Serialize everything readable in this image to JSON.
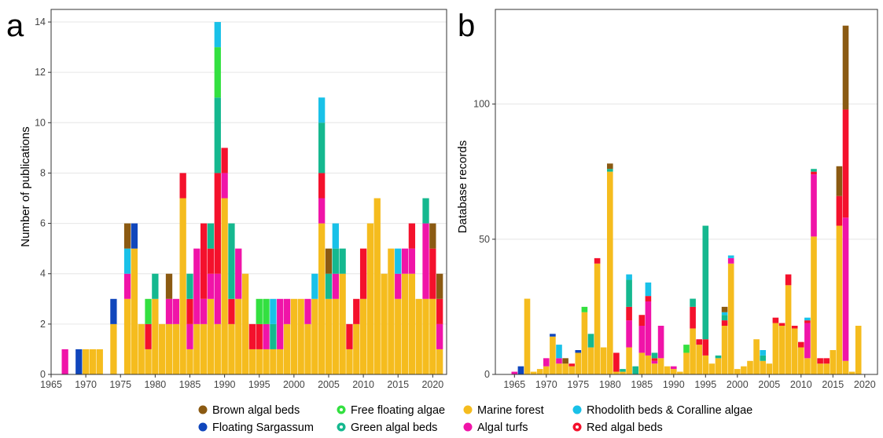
{
  "chart_data": [
    {
      "type": "bar",
      "stacked": true,
      "panel_label": "a",
      "ylabel": "Number of publications",
      "xlim": [
        1965,
        2022
      ],
      "ylim": [
        0,
        14.5
      ],
      "x_ticks": [
        1965,
        1970,
        1975,
        1980,
        1985,
        1990,
        1995,
        2000,
        2005,
        2010,
        2015,
        2020
      ],
      "y_ticks": [
        0,
        2,
        4,
        6,
        8,
        10,
        12,
        14
      ],
      "grid": true,
      "stack_order": [
        "Marine forest",
        "Algal turfs",
        "Red algal beds",
        "Green algal beds",
        "Free floating algae",
        "Rhodolith beds & Coralline algae",
        "Floating Sargassum",
        "Brown algal beds"
      ],
      "bars": [
        {
          "x": 1967,
          "values": {
            "Algal turfs": 1
          }
        },
        {
          "x": 1969,
          "values": {
            "Floating Sargassum": 1
          }
        },
        {
          "x": 1970,
          "values": {
            "Marine forest": 1
          }
        },
        {
          "x": 1971,
          "values": {
            "Marine forest": 1
          }
        },
        {
          "x": 1972,
          "values": {
            "Marine forest": 1
          }
        },
        {
          "x": 1974,
          "values": {
            "Marine forest": 2,
            "Floating Sargassum": 1
          }
        },
        {
          "x": 1976,
          "values": {
            "Marine forest": 3,
            "Algal turfs": 1,
            "Rhodolith beds & Coralline algae": 1,
            "Brown algal beds": 1
          }
        },
        {
          "x": 1977,
          "values": {
            "Marine forest": 5,
            "Floating Sargassum": 1
          }
        },
        {
          "x": 1978,
          "values": {
            "Marine forest": 2
          }
        },
        {
          "x": 1979,
          "values": {
            "Marine forest": 1,
            "Red algal beds": 1,
            "Free floating algae": 1
          }
        },
        {
          "x": 1980,
          "values": {
            "Marine forest": 3,
            "Green algal beds": 1
          }
        },
        {
          "x": 1981,
          "values": {
            "Marine forest": 2
          }
        },
        {
          "x": 1982,
          "values": {
            "Marine forest": 2,
            "Algal turfs": 1,
            "Brown algal beds": 1
          }
        },
        {
          "x": 1983,
          "values": {
            "Marine forest": 2,
            "Algal turfs": 1
          }
        },
        {
          "x": 1984,
          "values": {
            "Marine forest": 7,
            "Red algal beds": 1
          }
        },
        {
          "x": 1985,
          "values": {
            "Marine forest": 1,
            "Algal turfs": 1,
            "Red algal beds": 1,
            "Green algal beds": 1
          }
        },
        {
          "x": 1986,
          "values": {
            "Marine forest": 2,
            "Algal turfs": 3
          }
        },
        {
          "x": 1987,
          "values": {
            "Marine forest": 2,
            "Algal turfs": 1,
            "Red algal beds": 3
          }
        },
        {
          "x": 1988,
          "values": {
            "Marine forest": 3,
            "Algal turfs": 1,
            "Red algal beds": 1,
            "Green algal beds": 1
          }
        },
        {
          "x": 1989,
          "values": {
            "Marine forest": 2,
            "Algal turfs": 2,
            "Red algal beds": 4,
            "Green algal beds": 3,
            "Free floating algae": 2,
            "Rhodolith beds & Coralline algae": 1
          }
        },
        {
          "x": 1990,
          "values": {
            "Marine forest": 7,
            "Algal turfs": 1,
            "Red algal beds": 1
          }
        },
        {
          "x": 1991,
          "values": {
            "Marine forest": 2,
            "Red algal beds": 1,
            "Green algal beds": 3
          }
        },
        {
          "x": 1992,
          "values": {
            "Marine forest": 3,
            "Algal turfs": 2
          }
        },
        {
          "x": 1993,
          "values": {
            "Marine forest": 4
          }
        },
        {
          "x": 1994,
          "values": {
            "Marine forest": 1,
            "Red algal beds": 1
          }
        },
        {
          "x": 1995,
          "values": {
            "Marine forest": 1,
            "Red algal beds": 1,
            "Free floating algae": 1
          }
        },
        {
          "x": 1996,
          "values": {
            "Marine forest": 1,
            "Algal turfs": 1,
            "Free floating algae": 1
          }
        },
        {
          "x": 1997,
          "values": {
            "Marine forest": 1,
            "Green algal beds": 1,
            "Rhodolith beds & Coralline algae": 1
          }
        },
        {
          "x": 1998,
          "values": {
            "Marine forest": 1,
            "Algal turfs": 2
          }
        },
        {
          "x": 1999,
          "values": {
            "Marine forest": 2,
            "Algal turfs": 1
          }
        },
        {
          "x": 2000,
          "values": {
            "Marine forest": 3
          }
        },
        {
          "x": 2001,
          "values": {
            "Marine forest": 3
          }
        },
        {
          "x": 2002,
          "values": {
            "Marine forest": 2,
            "Algal turfs": 1
          }
        },
        {
          "x": 2003,
          "values": {
            "Marine forest": 3,
            "Rhodolith beds & Coralline algae": 1
          }
        },
        {
          "x": 2004,
          "values": {
            "Marine forest": 6,
            "Red algal beds": 1,
            "Algal turfs": 1,
            "Green algal beds": 2,
            "Rhodolith beds & Coralline algae": 1
          }
        },
        {
          "x": 2005,
          "values": {
            "Marine forest": 3,
            "Green algal beds": 1,
            "Brown algal beds": 1
          }
        },
        {
          "x": 2006,
          "values": {
            "Marine forest": 3,
            "Algal turfs": 1,
            "Green algal beds": 1,
            "Rhodolith beds & Coralline algae": 1
          }
        },
        {
          "x": 2007,
          "values": {
            "Marine forest": 4,
            "Green algal beds": 1
          }
        },
        {
          "x": 2008,
          "values": {
            "Marine forest": 1,
            "Red algal beds": 1
          }
        },
        {
          "x": 2009,
          "values": {
            "Marine forest": 2,
            "Red algal beds": 1
          }
        },
        {
          "x": 2010,
          "values": {
            "Marine forest": 3,
            "Red algal beds": 2
          }
        },
        {
          "x": 2011,
          "values": {
            "Marine forest": 6
          }
        },
        {
          "x": 2012,
          "values": {
            "Marine forest": 7
          }
        },
        {
          "x": 2013,
          "values": {
            "Marine forest": 4
          }
        },
        {
          "x": 2014,
          "values": {
            "Marine forest": 5
          }
        },
        {
          "x": 2015,
          "values": {
            "Marine forest": 3,
            "Algal turfs": 1,
            "Rhodolith beds & Coralline algae": 1
          }
        },
        {
          "x": 2016,
          "values": {
            "Marine forest": 4,
            "Algal turfs": 1
          }
        },
        {
          "x": 2017,
          "values": {
            "Marine forest": 4,
            "Algal turfs": 1,
            "Red algal beds": 1
          }
        },
        {
          "x": 2018,
          "values": {
            "Marine forest": 3
          }
        },
        {
          "x": 2019,
          "values": {
            "Marine forest": 3,
            "Algal turfs": 3,
            "Green algal beds": 1
          }
        },
        {
          "x": 2020,
          "values": {
            "Marine forest": 3,
            "Red algal beds": 2,
            "Brown algal beds": 1
          }
        },
        {
          "x": 2021,
          "values": {
            "Marine forest": 1,
            "Algal turfs": 1,
            "Red algal beds": 1,
            "Brown algal beds": 1
          }
        }
      ]
    },
    {
      "type": "bar",
      "stacked": true,
      "panel_label": "b",
      "ylabel": "Database records",
      "xlim": [
        1962,
        2022
      ],
      "ylim": [
        0,
        135
      ],
      "x_ticks": [
        1965,
        1970,
        1975,
        1980,
        1985,
        1990,
        1995,
        2000,
        2005,
        2010,
        2015,
        2020
      ],
      "y_ticks": [
        0,
        50,
        100
      ],
      "grid": true,
      "stack_order": [
        "Marine forest",
        "Algal turfs",
        "Red algal beds",
        "Green algal beds",
        "Free floating algae",
        "Rhodolith beds & Coralline algae",
        "Floating Sargassum",
        "Brown algal beds"
      ],
      "bars": [
        {
          "x": 1965,
          "values": {
            "Algal turfs": 1
          }
        },
        {
          "x": 1966,
          "values": {
            "Floating Sargassum": 3
          }
        },
        {
          "x": 1967,
          "values": {
            "Marine forest": 28
          }
        },
        {
          "x": 1968,
          "values": {
            "Marine forest": 1
          }
        },
        {
          "x": 1969,
          "values": {
            "Marine forest": 2
          }
        },
        {
          "x": 1970,
          "values": {
            "Marine forest": 3,
            "Algal turfs": 3
          }
        },
        {
          "x": 1971,
          "values": {
            "Marine forest": 14,
            "Floating Sargassum": 1
          }
        },
        {
          "x": 1972,
          "values": {
            "Marine forest": 4,
            "Algal turfs": 2,
            "Rhodolith beds & Coralline algae": 5
          }
        },
        {
          "x": 1973,
          "values": {
            "Marine forest": 4,
            "Brown algal beds": 2
          }
        },
        {
          "x": 1974,
          "values": {
            "Marine forest": 3,
            "Red algal beds": 1
          }
        },
        {
          "x": 1975,
          "values": {
            "Marine forest": 8,
            "Floating Sargassum": 1
          }
        },
        {
          "x": 1976,
          "values": {
            "Marine forest": 23,
            "Free floating algae": 2
          }
        },
        {
          "x": 1977,
          "values": {
            "Marine forest": 10,
            "Green algal beds": 5
          }
        },
        {
          "x": 1978,
          "values": {
            "Marine forest": 41,
            "Red algal beds": 2
          }
        },
        {
          "x": 1979,
          "values": {
            "Marine forest": 10
          }
        },
        {
          "x": 1980,
          "values": {
            "Marine forest": 75,
            "Green algal beds": 1,
            "Brown algal beds": 2
          }
        },
        {
          "x": 1981,
          "values": {
            "Marine forest": 1,
            "Red algal beds": 7
          }
        },
        {
          "x": 1982,
          "values": {
            "Marine forest": 1,
            "Green algal beds": 1
          }
        },
        {
          "x": 1983,
          "values": {
            "Marine forest": 10,
            "Algal turfs": 10,
            "Red algal beds": 5,
            "Green algal beds": 10,
            "Rhodolith beds & Coralline algae": 2
          }
        },
        {
          "x": 1984,
          "values": {
            "Green algal beds": 3
          }
        },
        {
          "x": 1985,
          "values": {
            "Marine forest": 8,
            "Algal turfs": 10,
            "Red algal beds": 4
          }
        },
        {
          "x": 1986,
          "values": {
            "Marine forest": 7,
            "Algal turfs": 20,
            "Red algal beds": 2,
            "Rhodolith beds & Coralline algae": 5
          }
        },
        {
          "x": 1987,
          "values": {
            "Marine forest": 4,
            "Red algal beds": 1,
            "Algal turfs": 1,
            "Green algal beds": 2
          }
        },
        {
          "x": 1988,
          "values": {
            "Marine forest": 6,
            "Algal turfs": 12
          }
        },
        {
          "x": 1989,
          "values": {
            "Marine forest": 3
          }
        },
        {
          "x": 1990,
          "values": {
            "Marine forest": 2,
            "Algal turfs": 1
          }
        },
        {
          "x": 1991,
          "values": {
            "Marine forest": 1
          }
        },
        {
          "x": 1992,
          "values": {
            "Marine forest": 8,
            "Free floating algae": 3
          }
        },
        {
          "x": 1993,
          "values": {
            "Marine forest": 17,
            "Red algal beds": 8,
            "Green algal beds": 3
          }
        },
        {
          "x": 1994,
          "values": {
            "Marine forest": 11,
            "Red algal beds": 2
          }
        },
        {
          "x": 1995,
          "values": {
            "Marine forest": 7,
            "Red algal beds": 6,
            "Green algal beds": 42
          }
        },
        {
          "x": 1996,
          "values": {
            "Marine forest": 4
          }
        },
        {
          "x": 1997,
          "values": {
            "Marine forest": 6,
            "Green algal beds": 1
          }
        },
        {
          "x": 1998,
          "values": {
            "Marine forest": 18,
            "Red algal beds": 2,
            "Green algal beds": 2,
            "Brown algal beds": 2,
            "Rhodolith beds & Coralline algae": 1
          }
        },
        {
          "x": 1999,
          "values": {
            "Marine forest": 41,
            "Algal turfs": 2,
            "Rhodolith beds & Coralline algae": 1
          }
        },
        {
          "x": 2000,
          "values": {
            "Marine forest": 2
          }
        },
        {
          "x": 2001,
          "values": {
            "Marine forest": 3
          }
        },
        {
          "x": 2002,
          "values": {
            "Marine forest": 5
          }
        },
        {
          "x": 2003,
          "values": {
            "Marine forest": 13
          }
        },
        {
          "x": 2004,
          "values": {
            "Marine forest": 5,
            "Green algal beds": 2,
            "Rhodolith beds & Coralline algae": 2
          }
        },
        {
          "x": 2005,
          "values": {
            "Marine forest": 4
          }
        },
        {
          "x": 2006,
          "values": {
            "Marine forest": 19,
            "Red algal beds": 2
          }
        },
        {
          "x": 2007,
          "values": {
            "Marine forest": 18,
            "Red algal beds": 1
          }
        },
        {
          "x": 2008,
          "values": {
            "Marine forest": 33,
            "Red algal beds": 4
          }
        },
        {
          "x": 2009,
          "values": {
            "Marine forest": 17,
            "Red algal beds": 1
          }
        },
        {
          "x": 2010,
          "values": {
            "Marine forest": 10,
            "Red algal beds": 2
          }
        },
        {
          "x": 2011,
          "values": {
            "Marine forest": 6,
            "Algal turfs": 13,
            "Red algal beds": 1,
            "Rhodolith beds & Coralline algae": 1
          }
        },
        {
          "x": 2012,
          "values": {
            "Marine forest": 51,
            "Algal turfs": 23,
            "Red algal beds": 1,
            "Green algal beds": 1
          }
        },
        {
          "x": 2013,
          "values": {
            "Marine forest": 4,
            "Red algal beds": 2
          }
        },
        {
          "x": 2014,
          "values": {
            "Marine forest": 4,
            "Red algal beds": 2
          }
        },
        {
          "x": 2015,
          "values": {
            "Marine forest": 9
          }
        },
        {
          "x": 2016,
          "values": {
            "Marine forest": 55,
            "Red algal beds": 11,
            "Brown algal beds": 11
          }
        },
        {
          "x": 2017,
          "values": {
            "Marine forest": 5,
            "Algal turfs": 53,
            "Red algal beds": 40,
            "Brown algal beds": 31
          }
        },
        {
          "x": 2018,
          "values": {
            "Marine forest": 1
          }
        },
        {
          "x": 2019,
          "values": {
            "Marine forest": 18
          }
        }
      ]
    }
  ],
  "legend": {
    "position": "bottom",
    "items": [
      {
        "name": "Brown algal beds",
        "color": "#8B5A12",
        "icon": "dot"
      },
      {
        "name": "Free floating algae",
        "color": "#33E040",
        "icon": "dot-ring"
      },
      {
        "name": "Marine forest",
        "color": "#F5BC1E",
        "icon": "dot"
      },
      {
        "name": "Rhodolith beds & Coralline algae",
        "color": "#19C1E8",
        "icon": "dot"
      },
      {
        "name": "Floating Sargassum",
        "color": "#1046BC",
        "icon": "dot"
      },
      {
        "name": "Green algal beds",
        "color": "#15B88F",
        "icon": "dot-ring"
      },
      {
        "name": "Algal turfs",
        "color": "#F014A8",
        "icon": "dot"
      },
      {
        "name": "Red algal beds",
        "color": "#F4112C",
        "icon": "dot-ring"
      }
    ]
  }
}
